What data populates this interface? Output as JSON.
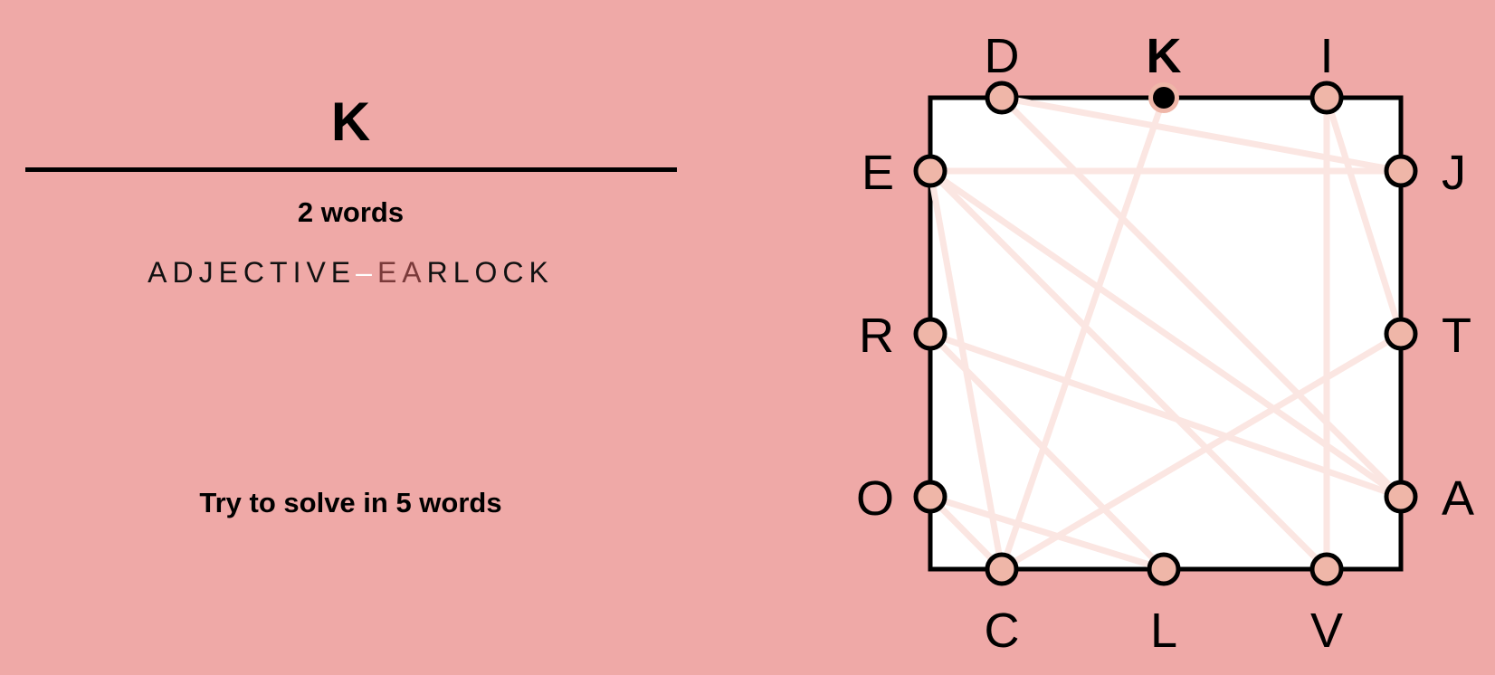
{
  "current_word": "K",
  "word_count_label": "2 words",
  "found_words": {
    "first": "ADJECTIVE",
    "separator": "–",
    "second_highlighted": "EA",
    "second_rest": "RLOCK"
  },
  "hint": "Try to solve in 5 words",
  "board": {
    "top": [
      "D",
      "K",
      "I"
    ],
    "right": [
      "J",
      "T",
      "A"
    ],
    "bottom": [
      "C",
      "L",
      "V"
    ],
    "left": [
      "E",
      "R",
      "O"
    ],
    "active_letter": "K",
    "paths": [
      [
        "A",
        "D",
        "J",
        "E",
        "C",
        "T",
        "I",
        "V",
        "E"
      ],
      [
        "E",
        "A",
        "R",
        "L",
        "O",
        "C",
        "K"
      ]
    ]
  },
  "colors": {
    "background": "#efa9a7",
    "board_fill": "#ffffff",
    "node_fill": "#efb6a8",
    "path_line": "#fbe6e2",
    "active_node": "#000000"
  }
}
